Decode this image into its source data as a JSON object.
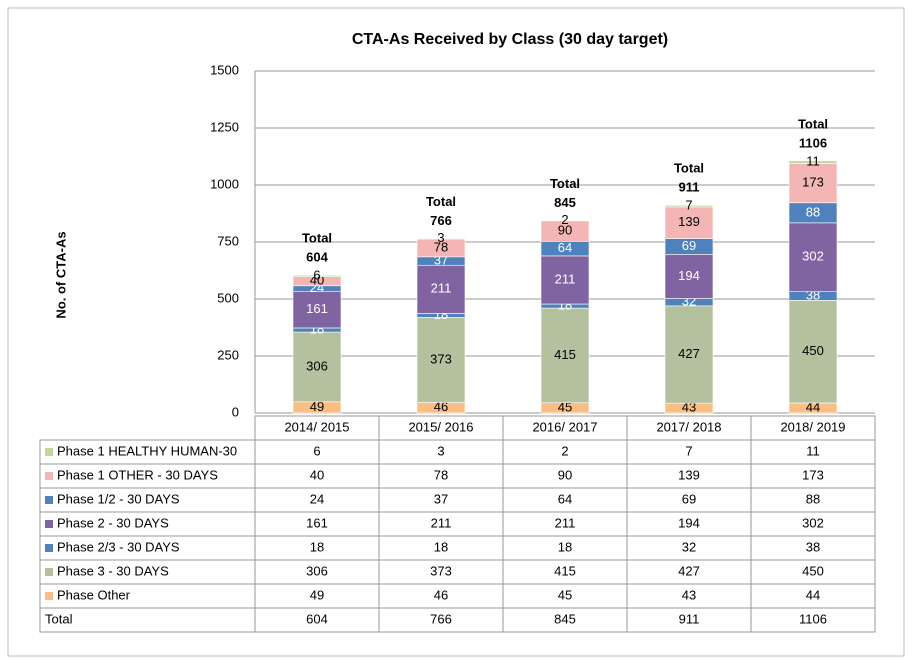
{
  "chart_data": {
    "type": "bar",
    "stacked": true,
    "title": "CTA-As Received by Class  (30 day target)",
    "y_label": "No. of CTA-As",
    "categories": [
      "2014/ 2015",
      "2015/ 2016",
      "2016/ 2017",
      "2017/ 2018",
      "2018/ 2019"
    ],
    "series": [
      {
        "name": "Phase 1 HEALTHY HUMAN-30",
        "color": "#c3d69b",
        "values": [
          6,
          3,
          2,
          7,
          11
        ]
      },
      {
        "name": "Phase 1 OTHER - 30 DAYS",
        "color": "#f4b6b4",
        "values": [
          40,
          78,
          90,
          139,
          173
        ]
      },
      {
        "name": "Phase 1/2 - 30 DAYS",
        "color": "#4f81bd",
        "values": [
          24,
          37,
          64,
          69,
          88
        ]
      },
      {
        "name": "Phase 2 - 30 DAYS",
        "color": "#8064a2",
        "values": [
          161,
          211,
          211,
          194,
          302
        ]
      },
      {
        "name": "Phase 2/3 - 30 DAYS",
        "color": "#4f81bd",
        "values": [
          18,
          18,
          18,
          32,
          38
        ]
      },
      {
        "name": "Phase 3 - 30 DAYS",
        "color": "#b4c19f",
        "values": [
          306,
          373,
          415,
          427,
          450
        ]
      },
      {
        "name": "Phase Other",
        "color": "#f9be85",
        "values": [
          49,
          46,
          45,
          43,
          44
        ]
      }
    ],
    "total_label": "Total",
    "totals": [
      604,
      766,
      845,
      911,
      1106
    ],
    "ylim": [
      0,
      1500
    ],
    "yticks": [
      0,
      250,
      500,
      750,
      1000,
      1250,
      1500
    ],
    "grid": true
  }
}
